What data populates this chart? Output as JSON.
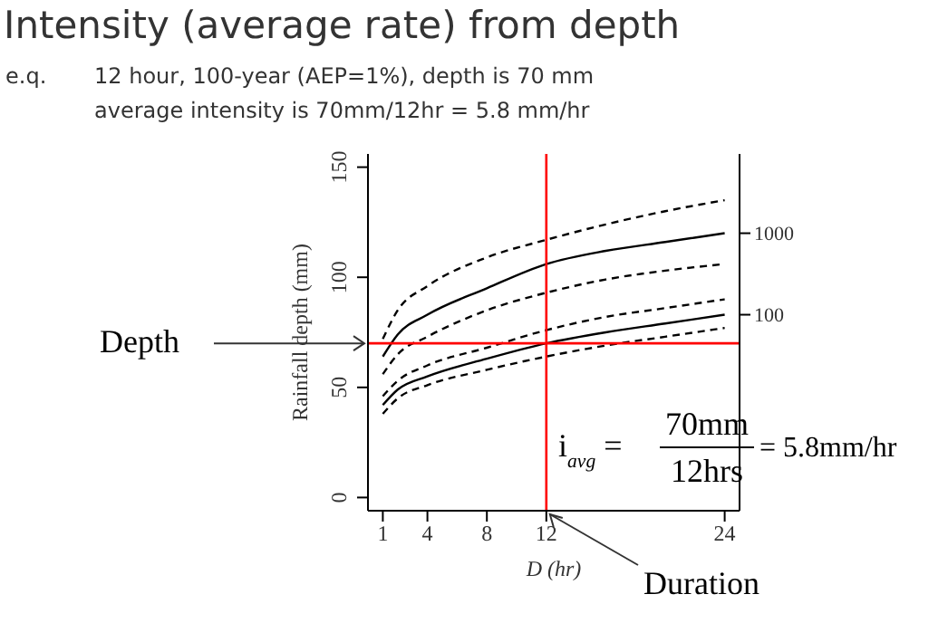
{
  "chart_data": {
    "type": "line",
    "title": "Intensity (average rate) from depth",
    "subtitle": "12 hour, 100-year (AEP=1%), depth is 70 mm\naverage intensity is 70mm/12hr = 5.8 mm/hr",
    "xlabel": "D (hr)",
    "ylabel": "Rainfall depth (mm)",
    "x": [
      1,
      2,
      4,
      8,
      12,
      16,
      20,
      24
    ],
    "series": [
      {
        "color": "#000000",
        "line_style": "dashed",
        "values": [
          72,
          85,
          96,
          109,
          117,
          124,
          130,
          135
        ]
      },
      {
        "name": "1000",
        "color": "#000000",
        "line_style": "solid",
        "values": [
          64,
          74,
          83,
          95,
          106,
          112,
          116,
          120
        ]
      },
      {
        "color": "#000000",
        "line_style": "dashed",
        "values": [
          56,
          65,
          73,
          85,
          93,
          99,
          103,
          106
        ]
      },
      {
        "color": "#000000",
        "line_style": "dashed",
        "values": [
          46,
          53,
          60,
          68,
          76,
          82,
          86,
          90
        ]
      },
      {
        "name": "100",
        "color": "#000000",
        "line_style": "solid",
        "values": [
          42,
          49,
          55,
          63,
          70,
          75,
          79,
          83
        ]
      },
      {
        "color": "#000000",
        "line_style": "dashed",
        "values": [
          38,
          45,
          51,
          58,
          64,
          69,
          73,
          77
        ]
      }
    ],
    "xlim": [
      0,
      25
    ],
    "xticks": [
      1,
      4,
      8,
      12,
      24
    ],
    "ylim": [
      -6,
      156
    ],
    "yticks": [
      0,
      50,
      100,
      150
    ],
    "ref_lines": [
      {
        "axis": "y",
        "value": 70,
        "color": "#ff0000"
      },
      {
        "axis": "x",
        "value": 12,
        "color": "#ff0000"
      }
    ],
    "annotations": [
      "e.q.",
      "Depth",
      "Duration",
      "i$_{avg}$ =",
      "70mm",
      "12hrs",
      "= 5.8mm/hr"
    ],
    "legend": "right",
    "marker": "none"
  }
}
